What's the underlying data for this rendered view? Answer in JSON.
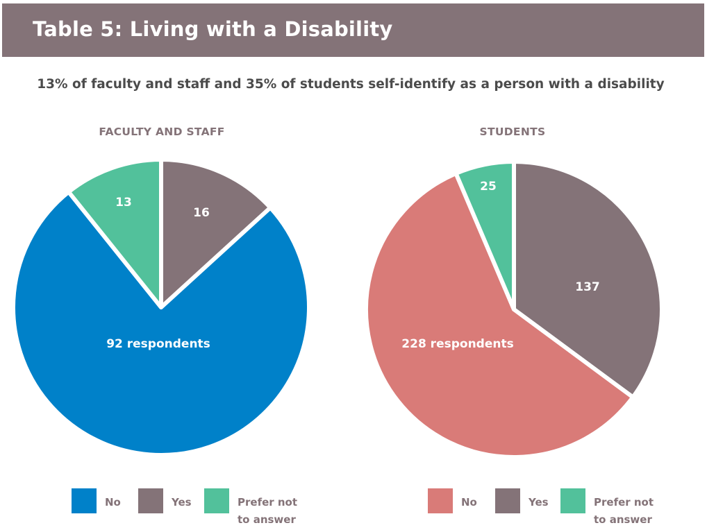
{
  "header": {
    "title": "Table 5: Living with a Disability"
  },
  "subtitle": "13% of faculty and staff and 35% of students self-identify as a person with a disability",
  "colors": {
    "header_bg": "#847378",
    "separator": "#ffffff"
  },
  "chart_data": [
    {
      "type": "pie",
      "title": "FACULTY AND STAFF",
      "slices": [
        {
          "label": "Yes",
          "value": 16,
          "display": "16",
          "color": "#847378"
        },
        {
          "label": "No",
          "value": 92,
          "display": "92 respondents",
          "color": "#0081c9"
        },
        {
          "label": "Prefer not to answer",
          "value": 13,
          "display": "13",
          "color": "#52c19b"
        }
      ],
      "legend": [
        {
          "label": "No",
          "color": "#0081c9"
        },
        {
          "label": "Yes",
          "color": "#847378"
        },
        {
          "label": "Prefer not to answer",
          "color": "#52c19b"
        }
      ],
      "legend_position": "bottom"
    },
    {
      "type": "pie",
      "title": "STUDENTS",
      "slices": [
        {
          "label": "Yes",
          "value": 137,
          "display": "137",
          "color": "#847378"
        },
        {
          "label": "No",
          "value": 228,
          "display": "228 respondents",
          "color": "#d97b78"
        },
        {
          "label": "Prefer not to answer",
          "value": 25,
          "display": "25",
          "color": "#52c19b"
        }
      ],
      "legend": [
        {
          "label": "No",
          "color": "#d97b78"
        },
        {
          "label": "Yes",
          "color": "#847378"
        },
        {
          "label": "Prefer not to answer",
          "color": "#52c19b"
        }
      ],
      "legend_position": "bottom"
    }
  ]
}
